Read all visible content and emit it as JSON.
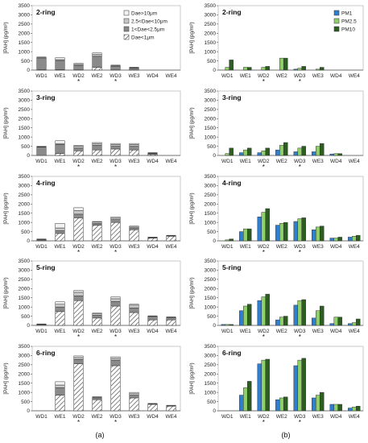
{
  "figure": {
    "ylabel": "[PAH] (pg/m³)",
    "sub_a": "(a)",
    "sub_b": "(b)",
    "colors": {
      "dae10": "#f2f2f2",
      "dae2510": "#c6c6c6",
      "dae125": "#8a8a8a",
      "pm1": "#2f7fd0",
      "pm25": "#8fd06b",
      "pm10": "#2b5e1f",
      "edge": "#333333"
    }
  },
  "chart_data": [
    {
      "type": "bar",
      "stacked": true,
      "panel": "a",
      "title": "2-ring",
      "categories": [
        "WD1",
        "WE1",
        "WD2",
        "WE2",
        "WD3",
        "WE3",
        "WD4",
        "WE4"
      ],
      "starred": [
        "WD2",
        "WD3"
      ],
      "ylim": [
        0,
        3500
      ],
      "yticks": [
        0,
        500,
        1000,
        1500,
        2000,
        2500,
        3000,
        3500
      ],
      "legend": {
        "position": "top-right"
      },
      "series": [
        {
          "name": "Dae<1μm",
          "pattern": "hatch",
          "values": [
            30,
            20,
            10,
            150,
            10,
            10,
            0,
            0
          ]
        },
        {
          "name": "1<Dae<2.5μm",
          "pattern": "dark",
          "values": [
            600,
            500,
            250,
            600,
            200,
            100,
            0,
            0
          ]
        },
        {
          "name": "2.5<Dae<10μm",
          "pattern": "gray",
          "values": [
            50,
            50,
            50,
            100,
            30,
            20,
            0,
            0
          ]
        },
        {
          "name": "Dae>10μm",
          "pattern": "light",
          "values": [
            30,
            100,
            50,
            80,
            30,
            20,
            0,
            0
          ]
        }
      ]
    },
    {
      "type": "bar",
      "stacked": true,
      "panel": "a",
      "title": "3-ring",
      "categories": [
        "WD1",
        "WE1",
        "WD2",
        "WE2",
        "WD3",
        "WE3",
        "WD4",
        "WE4"
      ],
      "starred": [
        "WD2",
        "WD3"
      ],
      "ylim": [
        0,
        3500
      ],
      "yticks": [
        0,
        500,
        1000,
        1500,
        2000,
        2500,
        3000,
        3500
      ],
      "series": [
        {
          "name": "Dae<1μm",
          "values": [
            0,
            100,
            250,
            300,
            350,
            300,
            50,
            0
          ]
        },
        {
          "name": "1<Dae<2.5μm",
          "values": [
            450,
            500,
            150,
            250,
            150,
            200,
            50,
            0
          ]
        },
        {
          "name": "2.5<Dae<10μm",
          "values": [
            20,
            50,
            100,
            100,
            100,
            100,
            30,
            0
          ]
        },
        {
          "name": "Dae>10μm",
          "values": [
            30,
            150,
            50,
            50,
            50,
            50,
            20,
            0
          ]
        }
      ]
    },
    {
      "type": "bar",
      "stacked": true,
      "panel": "a",
      "title": "4-ring",
      "categories": [
        "WD1",
        "WE1",
        "WD2",
        "WE2",
        "WD3",
        "WE3",
        "WD4",
        "WE4"
      ],
      "starred": [
        "WD2",
        "WD3"
      ],
      "ylim": [
        0,
        3500
      ],
      "yticks": [
        0,
        500,
        1000,
        1500,
        2000,
        2500,
        3000,
        3500
      ],
      "series": [
        {
          "name": "Dae<1μm",
          "values": [
            0,
            400,
            1250,
            850,
            1000,
            600,
            150,
            250
          ]
        },
        {
          "name": "1<Dae<2.5μm",
          "values": [
            50,
            150,
            200,
            100,
            150,
            100,
            20,
            30
          ]
        },
        {
          "name": "2.5<Dae<10μm",
          "values": [
            30,
            150,
            200,
            70,
            80,
            50,
            10,
            20
          ]
        },
        {
          "name": "Dae>10μm",
          "values": [
            20,
            250,
            150,
            30,
            70,
            50,
            20,
            0
          ]
        }
      ]
    },
    {
      "type": "bar",
      "stacked": true,
      "panel": "a",
      "title": "5-ring",
      "categories": [
        "WD1",
        "WE1",
        "WD2",
        "WE2",
        "WD3",
        "WE3",
        "WD4",
        "WE4"
      ],
      "starred": [
        "WD2",
        "WD3"
      ],
      "ylim": [
        0,
        3500
      ],
      "yticks": [
        0,
        500,
        1000,
        1500,
        2000,
        2500,
        3000,
        3500
      ],
      "series": [
        {
          "name": "Dae<1μm",
          "values": [
            0,
            750,
            1350,
            400,
            1050,
            700,
            300,
            300
          ]
        },
        {
          "name": "1<Dae<2.5μm",
          "values": [
            50,
            250,
            250,
            150,
            250,
            250,
            150,
            120
          ]
        },
        {
          "name": "2.5<Dae<10μm",
          "values": [
            20,
            150,
            200,
            80,
            150,
            150,
            50,
            30
          ]
        },
        {
          "name": "Dae>10μm",
          "values": [
            10,
            130,
            100,
            40,
            100,
            50,
            20,
            10
          ]
        }
      ]
    },
    {
      "type": "bar",
      "stacked": true,
      "panel": "a",
      "title": "6-ring",
      "categories": [
        "WD1",
        "WE1",
        "WD2",
        "WE2",
        "WD3",
        "WE3",
        "WD4",
        "WE4"
      ],
      "starred": [
        "WD2",
        "WD3"
      ],
      "ylim": [
        0,
        3500
      ],
      "yticks": [
        0,
        500,
        1000,
        1500,
        2000,
        2500,
        3000,
        3500
      ],
      "series": [
        {
          "name": "Dae<1μm",
          "values": [
            0,
            850,
            2550,
            600,
            2450,
            700,
            350,
            250
          ]
        },
        {
          "name": "1<Dae<2.5μm",
          "values": [
            0,
            400,
            250,
            100,
            300,
            150,
            30,
            40
          ]
        },
        {
          "name": "2.5<Dae<10μm",
          "values": [
            0,
            150,
            100,
            40,
            100,
            80,
            20,
            10
          ]
        },
        {
          "name": "Dae>10μm",
          "values": [
            0,
            180,
            80,
            20,
            80,
            70,
            0,
            0
          ]
        }
      ]
    },
    {
      "type": "bar",
      "stacked": false,
      "panel": "b",
      "title": "2-ring",
      "categories": [
        "WD1",
        "WE1",
        "WD2",
        "WE2",
        "WD3",
        "WE3",
        "WD4",
        "WE4"
      ],
      "starred": [
        "WD2",
        "WD3"
      ],
      "ylim": [
        0,
        3500
      ],
      "yticks": [
        0,
        500,
        1000,
        1500,
        2000,
        2500,
        3000,
        3500
      ],
      "legend": {
        "position": "top-right"
      },
      "series": [
        {
          "name": "PM1",
          "values": [
            0,
            0,
            0,
            0,
            50,
            0,
            0,
            0
          ]
        },
        {
          "name": "PM2.5",
          "values": [
            150,
            150,
            150,
            650,
            100,
            50,
            0,
            0
          ]
        },
        {
          "name": "PM10",
          "values": [
            550,
            150,
            200,
            650,
            200,
            150,
            0,
            0
          ]
        }
      ]
    },
    {
      "type": "bar",
      "stacked": false,
      "panel": "b",
      "title": "3-ring",
      "categories": [
        "WD1",
        "WE1",
        "WD2",
        "WE2",
        "WD3",
        "WE3",
        "WD4",
        "WE4"
      ],
      "starred": [
        "WD2",
        "WD3"
      ],
      "ylim": [
        0,
        3500
      ],
      "yticks": [
        0,
        500,
        1000,
        1500,
        2000,
        2500,
        3000,
        3500
      ],
      "series": [
        {
          "name": "PM1",
          "values": [
            0,
            150,
            150,
            300,
            200,
            200,
            80,
            0
          ]
        },
        {
          "name": "PM2.5",
          "values": [
            100,
            300,
            250,
            550,
            400,
            500,
            100,
            0
          ]
        },
        {
          "name": "PM10",
          "values": [
            400,
            400,
            400,
            700,
            500,
            650,
            100,
            0
          ]
        }
      ]
    },
    {
      "type": "bar",
      "stacked": false,
      "panel": "b",
      "title": "4-ring",
      "categories": [
        "WD1",
        "WE1",
        "WD2",
        "WE2",
        "WD3",
        "WE3",
        "WD4",
        "WE4"
      ],
      "starred": [
        "WD2",
        "WD3"
      ],
      "ylim": [
        0,
        3500
      ],
      "yticks": [
        0,
        500,
        1000,
        1500,
        2000,
        2500,
        3000,
        3500
      ],
      "series": [
        {
          "name": "PM1",
          "values": [
            0,
            500,
            1300,
            850,
            1050,
            600,
            150,
            200
          ]
        },
        {
          "name": "PM2.5",
          "values": [
            50,
            650,
            1550,
            950,
            1200,
            750,
            150,
            250
          ]
        },
        {
          "name": "PM10",
          "values": [
            100,
            650,
            1750,
            1000,
            1250,
            800,
            200,
            300
          ]
        }
      ]
    },
    {
      "type": "bar",
      "stacked": false,
      "panel": "b",
      "title": "5-ring",
      "categories": [
        "WD1",
        "WE1",
        "WD2",
        "WE2",
        "WD3",
        "WE3",
        "WD4",
        "WE4"
      ],
      "starred": [
        "WD2",
        "WD3"
      ],
      "ylim": [
        0,
        3500
      ],
      "yticks": [
        0,
        500,
        1000,
        1500,
        2000,
        2500,
        3000,
        3500
      ],
      "series": [
        {
          "name": "PM1",
          "values": [
            50,
            800,
            1350,
            300,
            1100,
            400,
            100,
            100
          ]
        },
        {
          "name": "PM2.5",
          "values": [
            50,
            1050,
            1550,
            450,
            1350,
            800,
            450,
            150
          ]
        },
        {
          "name": "PM10",
          "values": [
            50,
            1150,
            1700,
            500,
            1400,
            1050,
            450,
            350
          ]
        }
      ]
    },
    {
      "type": "bar",
      "stacked": false,
      "panel": "b",
      "title": "6-ring",
      "categories": [
        "WD1",
        "WE1",
        "WD2",
        "WE2",
        "WD3",
        "WE3",
        "WD4",
        "WE4"
      ],
      "starred": [
        "WD2",
        "WD3"
      ],
      "ylim": [
        0,
        3500
      ],
      "yticks": [
        0,
        500,
        1000,
        1500,
        2000,
        2500,
        3000,
        3500
      ],
      "series": [
        {
          "name": "PM1",
          "values": [
            0,
            850,
            2550,
            600,
            2450,
            700,
            350,
            150
          ]
        },
        {
          "name": "PM2.5",
          "values": [
            0,
            1250,
            2750,
            700,
            2750,
            850,
            350,
            200
          ]
        },
        {
          "name": "PM10",
          "values": [
            0,
            1600,
            2800,
            750,
            2850,
            1000,
            350,
            250
          ]
        }
      ]
    }
  ]
}
